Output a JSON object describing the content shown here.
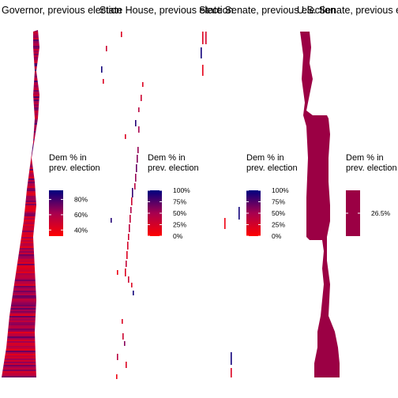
{
  "chart_data": {
    "type": "heatmap",
    "description_kind": "faceted choropleth-style small multiples",
    "colors": {
      "low": "#ff0000",
      "high": "#000080",
      "single": "#9b0044"
    },
    "panels": [
      {
        "title": "Governor, previous election",
        "legend": {
          "title_line1": "Dem % in",
          "title_line2": "prev. election",
          "ticks": [
            "80%",
            "60%",
            "40%"
          ],
          "tick_values": [
            80,
            60,
            40
          ],
          "range": [
            32,
            92
          ]
        },
        "map": "tall-shape"
      },
      {
        "title": "State House, previous election",
        "legend": {
          "title_line1": "Dem % in",
          "title_line2": "prev. election",
          "ticks": [
            "100%",
            "75%",
            "50%",
            "25%",
            "0%"
          ],
          "tick_values": [
            100,
            75,
            50,
            25,
            0
          ],
          "range": [
            0,
            100
          ]
        },
        "map": "scattered-slivers"
      },
      {
        "title": "State Senate, previous election",
        "legend": {
          "title_line1": "Dem % in",
          "title_line2": "prev. election",
          "ticks": [
            "100%",
            "75%",
            "50%",
            "25%",
            "0%"
          ],
          "tick_values": [
            100,
            75,
            50,
            25,
            0
          ],
          "range": [
            0,
            100
          ]
        },
        "map": "few-slivers"
      },
      {
        "title": "U.S. Senate, previous election",
        "legend": {
          "title_line1": "Dem % in",
          "title_line2": "prev. election",
          "ticks": [
            "26.5%"
          ],
          "tick_values": [
            26.5
          ],
          "range": [
            26.5,
            26.5
          ]
        },
        "map": "solid-shape"
      }
    ]
  }
}
